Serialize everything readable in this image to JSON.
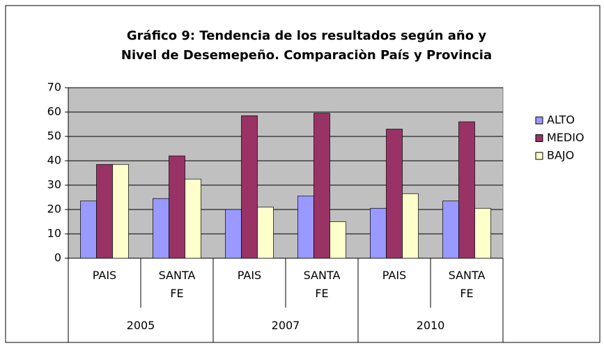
{
  "chart_data": {
    "type": "bar",
    "title": [
      "Gráfico 9: Tendencia de los resultados según año y",
      "Nivel de Desemepeño. Comparaciòn País y Provincia"
    ],
    "categories": [
      "PAIS",
      "SANTA FE",
      "PAIS",
      "SANTA FE",
      "PAIS",
      "SANTA FE"
    ],
    "groups": [
      "2005",
      "2007",
      "2010"
    ],
    "series": [
      {
        "name": "ALTO",
        "color": "#9999ff",
        "values": [
          23.5,
          24.5,
          20,
          25.5,
          20.5,
          23.5
        ]
      },
      {
        "name": "MEDIO",
        "color": "#993366",
        "values": [
          38.5,
          42,
          58.5,
          59.5,
          53,
          56
        ]
      },
      {
        "name": "BAJO",
        "color": "#ffffcc",
        "values": [
          38.5,
          32.5,
          21,
          15,
          26.5,
          20.5
        ]
      }
    ],
    "ylim": [
      0,
      70
    ],
    "yticks": [
      0,
      10,
      20,
      30,
      40,
      50,
      60,
      70
    ],
    "grid": true,
    "legend": "right",
    "plot_background": "#c0c0c0"
  }
}
